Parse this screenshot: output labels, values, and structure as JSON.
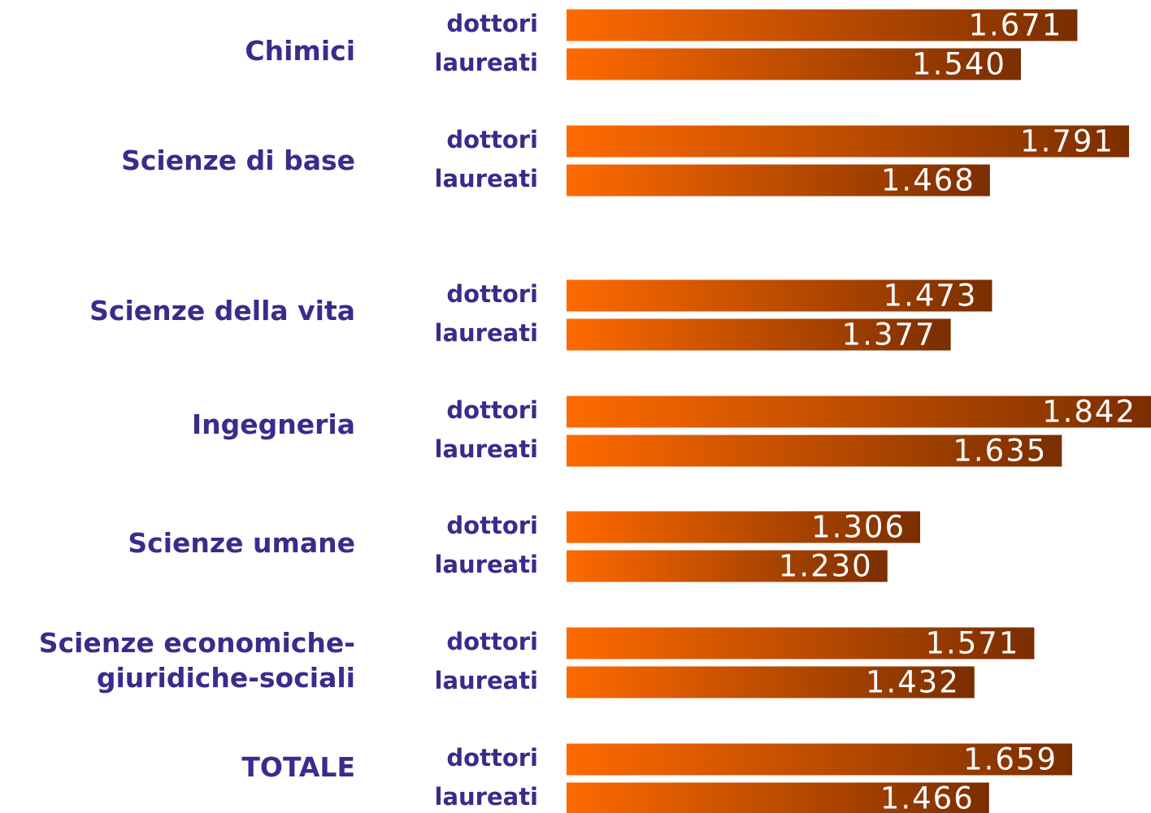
{
  "chart_data": {
    "type": "bar",
    "orientation": "horizontal",
    "categories": [
      "Chimici",
      "Scienze di base",
      "Scienze della vita",
      "Ingegneria",
      "Scienze umane",
      "Scienze economiche-giuridiche-sociali",
      "TOTALE"
    ],
    "series": [
      {
        "name": "dottori",
        "color": "#ff6a00",
        "values": [
          1671,
          1791,
          1473,
          1842,
          1306,
          1571,
          1659
        ],
        "value_labels": [
          "1.671",
          "1.791",
          "1.473",
          "1.842",
          "1.306",
          "1.571",
          "1.659"
        ]
      },
      {
        "name": "laureati",
        "color": "#ff6a00",
        "values": [
          1540,
          1468,
          1377,
          1635,
          1230,
          1432,
          1466
        ],
        "value_labels": [
          "1.540",
          "1.468",
          "1.377",
          "1.635",
          "1.230",
          "1.432",
          "1.466"
        ]
      }
    ],
    "xlim": [
      485,
      1842
    ]
  }
}
